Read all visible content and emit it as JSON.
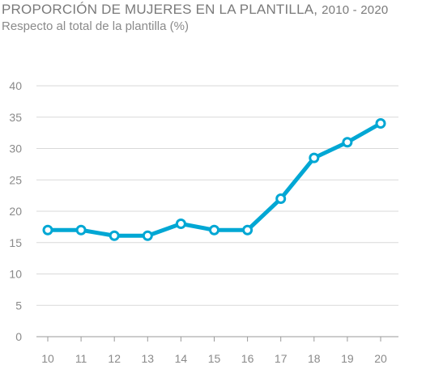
{
  "header": {
    "title_main": "PROPORCIÓN DE MUJERES EN LA PLANTILLA,",
    "title_years": "2010 - 2020",
    "subtitle": "Respecto al total de la plantilla (%)"
  },
  "chart_data": {
    "type": "line",
    "title": "PROPORCIÓN DE MUJERES EN LA PLANTILLA, 2010 - 2020",
    "subtitle": "Respecto al total de la plantilla (%)",
    "categories": [
      "10",
      "11",
      "12",
      "13",
      "14",
      "15",
      "16",
      "17",
      "18",
      "19",
      "20"
    ],
    "series": [
      {
        "values": [
          17,
          17,
          16.1,
          16.1,
          18,
          17,
          17,
          22,
          28.5,
          31,
          34
        ]
      }
    ],
    "yticks": [
      0,
      5,
      10,
      15,
      20,
      25,
      30,
      35,
      40
    ],
    "ylim": [
      0,
      40
    ],
    "grid": true,
    "legend": "none",
    "colors": {
      "line": "#00a7d4",
      "grid": "#d9d9d9",
      "axis": "#9a9a9a",
      "text": "#8a8a8a",
      "marker_fill": "#ffffff"
    }
  }
}
